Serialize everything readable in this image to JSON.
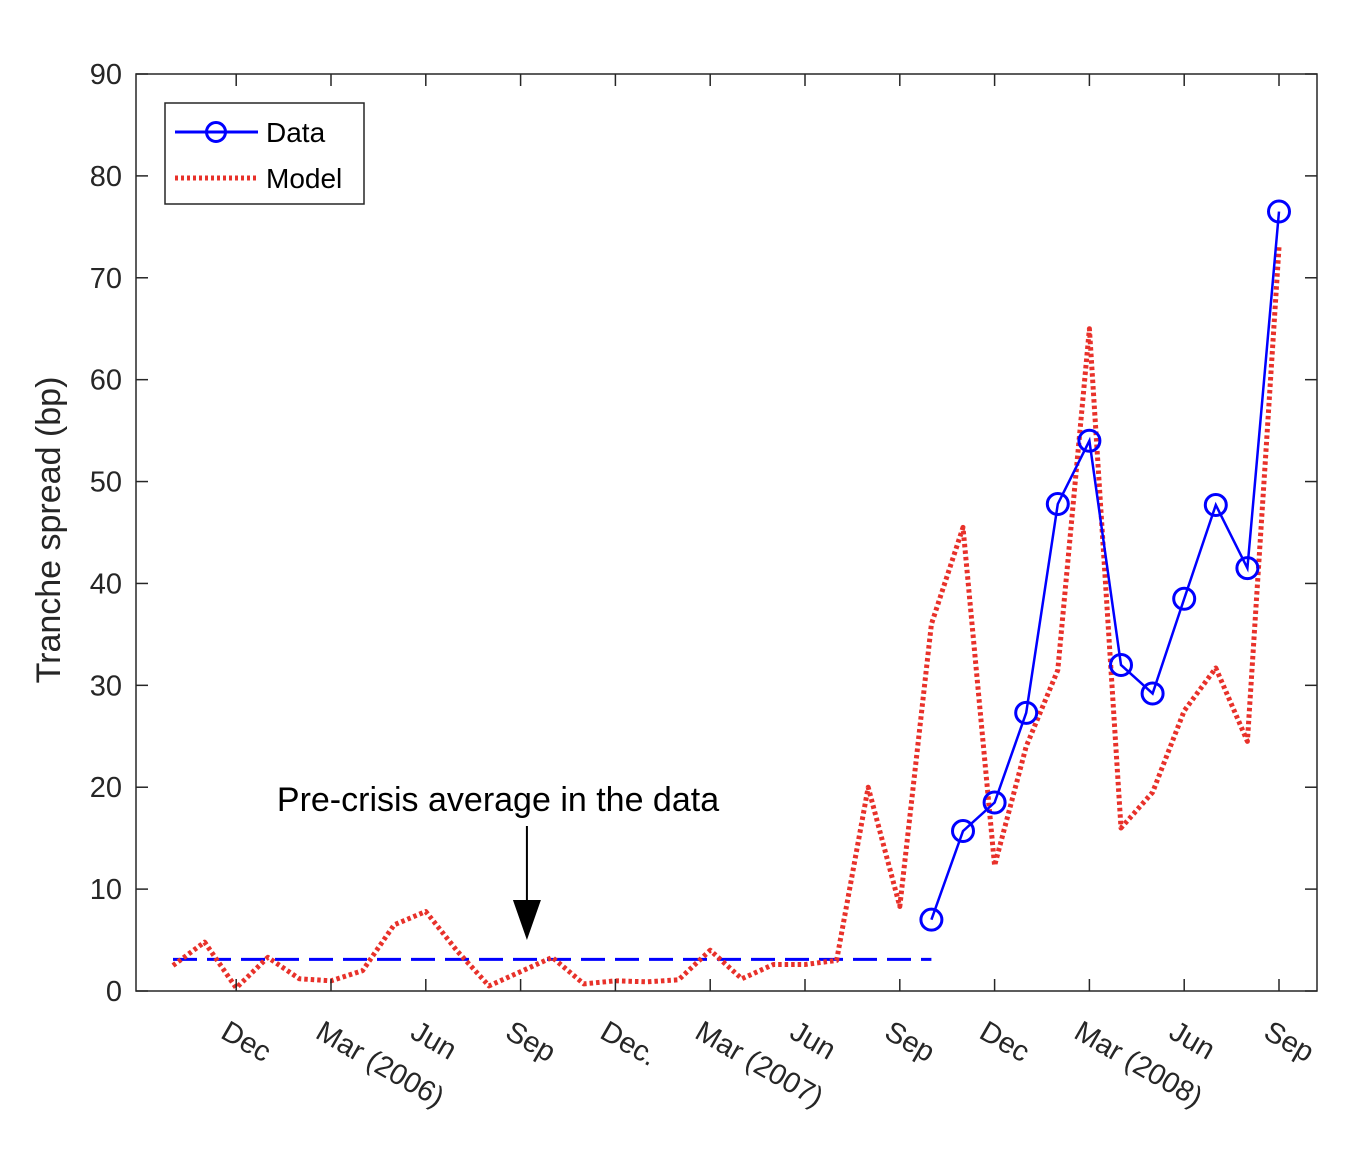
{
  "chart_data": {
    "type": "line",
    "ylabel": "Tranche spread (bp)",
    "ylim": [
      0,
      90
    ],
    "y_ticks": [
      "0",
      "10",
      "20",
      "30",
      "40",
      "50",
      "60",
      "70",
      "80",
      "90"
    ],
    "x_tick_labels": [
      "Dec",
      "Mar (2006)",
      "Jun",
      "Sep",
      "Dec.",
      "Mar (2007)",
      "Jun",
      "Sep",
      "Dec",
      "Mar (2008)",
      "Jun",
      "Sep"
    ],
    "x_tick_positions": [
      2,
      5,
      8,
      11,
      14,
      17,
      20,
      23,
      26,
      29,
      32,
      35
    ],
    "xlim": [
      -0.1,
      37.2
    ],
    "grid": false,
    "legend_placement": "top-left",
    "annotation": "Pre-crisis average in the data",
    "annotation_arrow_x": 11.2,
    "series": [
      {
        "name": "Data",
        "style": "solid-circle",
        "color": "#0000ff",
        "x": [
          24,
          25,
          26,
          27,
          28,
          29,
          30,
          31,
          32,
          33,
          34,
          35
        ],
        "values": [
          7.0,
          15.7,
          18.5,
          27.3,
          47.8,
          54.0,
          32.0,
          29.2,
          38.5,
          47.7,
          41.5,
          76.5
        ]
      },
      {
        "name": "Model",
        "style": "dotted",
        "color": "#e8312a",
        "x": [
          0,
          1,
          2,
          3,
          4,
          5,
          6,
          7,
          8,
          9,
          10,
          11,
          12,
          13,
          14,
          15,
          16,
          17,
          18,
          19,
          20,
          21,
          22,
          23,
          24,
          25,
          26,
          27,
          28,
          29,
          30,
          31,
          32,
          33,
          34,
          35
        ],
        "values": [
          2.5,
          4.8,
          0.3,
          3.3,
          1.2,
          1.0,
          2.0,
          6.5,
          7.8,
          3.9,
          0.5,
          1.9,
          3.3,
          0.7,
          1.0,
          0.9,
          1.1,
          4.0,
          1.2,
          2.6,
          2.6,
          3.0,
          20.0,
          8.3,
          36.0,
          45.5,
          12.3,
          24.0,
          31.5,
          65.0,
          16.0,
          19.5,
          27.5,
          31.7,
          24.5,
          73.0
        ]
      }
    ],
    "reference_line": {
      "name": "Pre-crisis average",
      "style": "dashed",
      "color": "#0000ff",
      "x": [
        0,
        24
      ],
      "value": 3.1
    }
  }
}
